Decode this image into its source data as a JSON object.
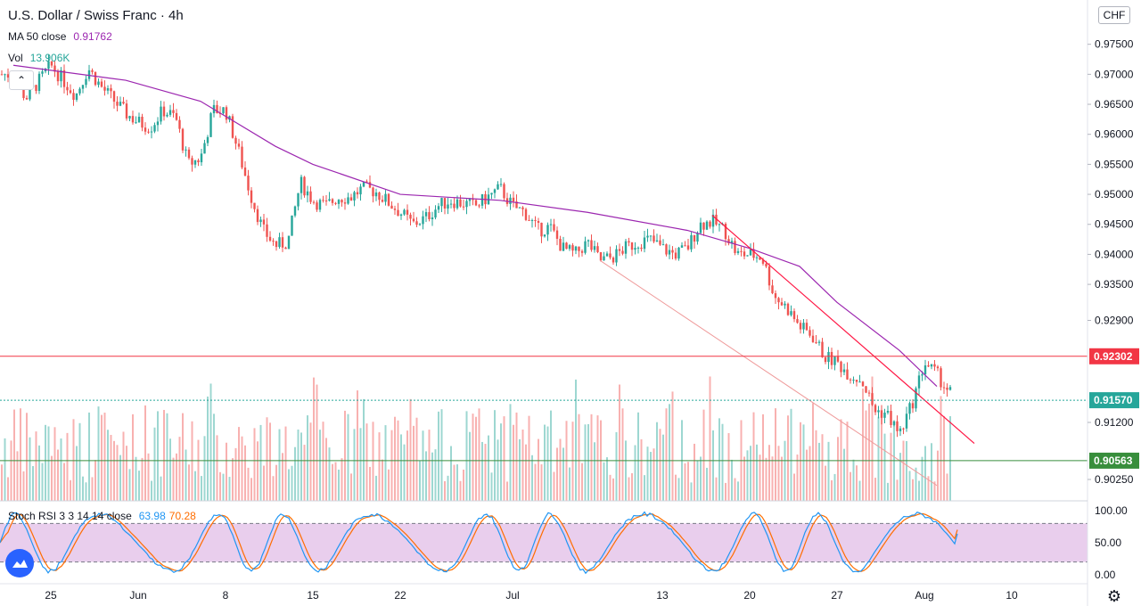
{
  "header": {
    "title": "U.S. Dollar / Swiss Franc · 4h",
    "ma_label": "MA 50 close",
    "ma_value": "0.91762",
    "vol_label": "Vol",
    "vol_value": "13.906K",
    "stoch_label": "Stoch RSI 3 3 14 14 close",
    "stoch_k": "63.98",
    "stoch_d": "70.28",
    "currency": "CHF",
    "collapse_icon": "chevron-up"
  },
  "colors": {
    "up": "#26a69a",
    "down": "#ef5350",
    "ma": "#9c27b0",
    "resistance": "#f23645",
    "support": "#388e3c",
    "stoch_k": "#2196f3",
    "stoch_d": "#ff6d00",
    "stoch_band": "#e1bee7",
    "trendline_upper": "#ff1744",
    "trendline_lower": "#ef9a9a"
  },
  "chart_data": {
    "type": "candlestick",
    "symbol": "U.S. Dollar / Swiss Franc",
    "timeframe": "4h",
    "ylim": [
      0.9,
      0.98
    ],
    "price_ticks": [
      "0.97500",
      "0.97000",
      "0.96500",
      "0.96000",
      "0.95500",
      "0.95000",
      "0.94500",
      "0.94000",
      "0.93500",
      "0.92900",
      "0.92302",
      "0.91570",
      "0.91200",
      "0.90563",
      "0.90250"
    ],
    "x_ticks": [
      "25",
      "Jun",
      "8",
      "15",
      "22",
      "Jul",
      "13",
      "20",
      "27",
      "Aug",
      "10"
    ],
    "marked_levels": [
      {
        "label": "0.92302",
        "price": 0.92302,
        "color": "#f23645"
      },
      {
        "label": "0.91570",
        "price": 0.9157,
        "color": "#26a69a"
      },
      {
        "label": "0.90563",
        "price": 0.90563,
        "color": "#388e3c"
      }
    ],
    "trendlines": [
      {
        "name": "descending resistance",
        "from": {
          "date": "Jul 17",
          "price": 0.9465
        },
        "to": {
          "date": "Aug 7",
          "price": 0.9085
        }
      },
      {
        "name": "descending support",
        "from": {
          "date": "Jul 8",
          "price": 0.939
        },
        "to": {
          "date": "Aug 4",
          "price": 0.9015
        }
      }
    ],
    "close_path": [
      [
        "May 22",
        0.97
      ],
      [
        "May 23",
        0.966
      ],
      [
        "May 25",
        0.9715
      ],
      [
        "May 27",
        0.9665
      ],
      [
        "May 28",
        0.971
      ],
      [
        "May 29",
        0.968
      ],
      [
        "May 31",
        0.9635
      ],
      [
        "Jun 1",
        0.962
      ],
      [
        "Jun 2",
        0.9612
      ],
      [
        "Jun 3",
        0.964
      ],
      [
        "Jun 4",
        0.9628
      ],
      [
        "Jun 5",
        0.955
      ],
      [
        "Jun 6",
        0.956
      ],
      [
        "Jun 7",
        0.964
      ],
      [
        "Jun 8",
        0.964
      ],
      [
        "Jun 9",
        0.9575
      ],
      [
        "Jun 10",
        0.95
      ],
      [
        "Jun 11",
        0.944
      ],
      [
        "Jun 12",
        0.9415
      ],
      [
        "Jun 13",
        0.942
      ],
      [
        "Jun 14",
        0.952
      ],
      [
        "Jun 15",
        0.949
      ],
      [
        "Jun 16",
        0.948
      ],
      [
        "Jun 17",
        0.9495
      ],
      [
        "Jun 18",
        0.9495
      ],
      [
        "Jun 19",
        0.951
      ],
      [
        "Jun 20",
        0.9505
      ],
      [
        "Jun 22",
        0.947
      ],
      [
        "Jun 23",
        0.945
      ],
      [
        "Jun 24",
        0.946
      ],
      [
        "Jun 25",
        0.948
      ],
      [
        "Jun 26",
        0.949
      ],
      [
        "Jun 27",
        0.9485
      ],
      [
        "Jun 28",
        0.948
      ],
      [
        "Jun 29",
        0.9495
      ],
      [
        "Jun 30",
        0.951
      ],
      [
        "Jul 1",
        0.948
      ],
      [
        "Jul 2",
        0.947
      ],
      [
        "Jul 3",
        0.944
      ],
      [
        "Jul 4",
        0.9445
      ],
      [
        "Jul 5",
        0.941
      ],
      [
        "Jul 6",
        0.94
      ],
      [
        "Jul 7",
        0.942
      ],
      [
        "Jul 8",
        0.939
      ],
      [
        "Jul 9",
        0.9395
      ],
      [
        "Jul 10",
        0.941
      ],
      [
        "Jul 11",
        0.942
      ],
      [
        "Jul 12",
        0.9425
      ],
      [
        "Jul 13",
        0.941
      ],
      [
        "Jul 14",
        0.94
      ],
      [
        "Jul 15",
        0.941
      ],
      [
        "Jul 16",
        0.945
      ],
      [
        "Jul 17",
        0.9455
      ],
      [
        "Jul 18",
        0.944
      ],
      [
        "Jul 19",
        0.94
      ],
      [
        "Jul 20",
        0.94
      ],
      [
        "Jul 21",
        0.9395
      ],
      [
        "Jul 22",
        0.933
      ],
      [
        "Jul 23",
        0.931
      ],
      [
        "Jul 24",
        0.928
      ],
      [
        "Jul 25",
        0.9265
      ],
      [
        "Jul 26",
        0.923
      ],
      [
        "Jul 27",
        0.922
      ],
      [
        "Jul 28",
        0.92
      ],
      [
        "Jul 29",
        0.919
      ],
      [
        "Jul 30",
        0.914
      ],
      [
        "Jul 31",
        0.9135
      ],
      [
        "Aug 1",
        0.91
      ],
      [
        "Aug 2",
        0.915
      ],
      [
        "Aug 3",
        0.922
      ],
      [
        "Aug 4",
        0.92
      ],
      [
        "Aug 5",
        0.917
      ]
    ],
    "ma_path": [
      [
        "May 22",
        0.9715
      ],
      [
        "May 31",
        0.969
      ],
      [
        "Jun 6",
        0.9655
      ],
      [
        "Jun 12",
        0.958
      ],
      [
        "Jun 15",
        0.955
      ],
      [
        "Jun 22",
        0.95
      ],
      [
        "Jun 30",
        0.949
      ],
      [
        "Jul 7",
        0.947
      ],
      [
        "Jul 15",
        0.944
      ],
      [
        "Jul 20",
        0.941
      ],
      [
        "Jul 24",
        0.938
      ],
      [
        "Jul 27",
        0.932
      ],
      [
        "Aug 1",
        0.924
      ],
      [
        "Aug 4",
        0.918
      ]
    ],
    "volume": {
      "last": "13.906K"
    },
    "stoch_rsi": {
      "k": 63.98,
      "d": 70.28,
      "ylim": [
        0,
        100
      ],
      "ticks": [
        "100.00",
        "50.00",
        "0.00"
      ],
      "bands": [
        80,
        20
      ]
    }
  }
}
